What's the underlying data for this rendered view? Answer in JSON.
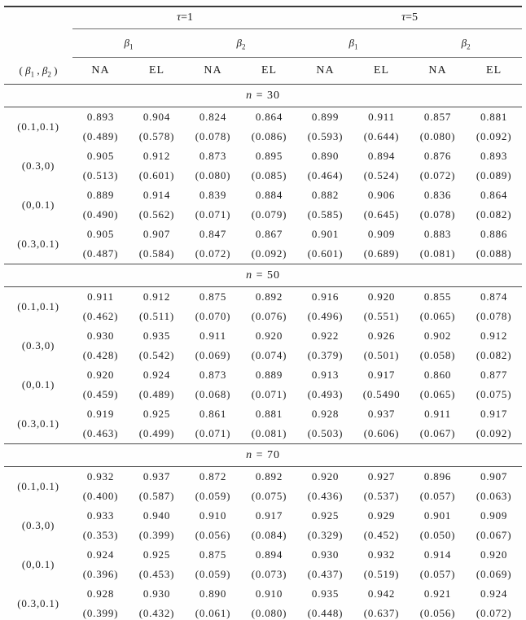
{
  "header": {
    "stub_label": "( β₁ , β₂ )",
    "tau_groups": [
      {
        "label": "τ=1"
      },
      {
        "label": "τ=5"
      }
    ],
    "beta_groups": [
      {
        "label": "β₁"
      },
      {
        "label": "β₂"
      },
      {
        "label": "β₁"
      },
      {
        "label": "β₂"
      }
    ],
    "method_cols": [
      "NA",
      "EL",
      "NA",
      "EL",
      "NA",
      "EL",
      "NA",
      "EL"
    ]
  },
  "sections": [
    {
      "title": "n = 30",
      "groups": [
        {
          "label": "(0.1,0.1)",
          "values": [
            "0.893",
            "0.904",
            "0.824",
            "0.864",
            "0.899",
            "0.911",
            "0.857",
            "0.881"
          ],
          "errors": [
            "(0.489)",
            "(0.578)",
            "(0.078)",
            "(0.086)",
            "(0.593)",
            "(0.644)",
            "(0.080)",
            "(0.092)"
          ]
        },
        {
          "label": "(0.3,0)",
          "values": [
            "0.905",
            "0.912",
            "0.873",
            "0.895",
            "0.890",
            "0.894",
            "0.876",
            "0.893"
          ],
          "errors": [
            "(0.513)",
            "(0.601)",
            "(0.080)",
            "(0.085)",
            "(0.464)",
            "(0.524)",
            "(0.072)",
            "(0.089)"
          ]
        },
        {
          "label": "(0,0.1)",
          "values": [
            "0.889",
            "0.914",
            "0.839",
            "0.884",
            "0.882",
            "0.906",
            "0.836",
            "0.864"
          ],
          "errors": [
            "(0.490)",
            "(0.562)",
            "(0.071)",
            "(0.079)",
            "(0.585)",
            "(0.645)",
            "(0.078)",
            "(0.082)"
          ]
        },
        {
          "label": "(0.3,0.1)",
          "values": [
            "0.905",
            "0.907",
            "0.847",
            "0.867",
            "0.901",
            "0.909",
            "0.883",
            "0.886"
          ],
          "errors": [
            "(0.487)",
            "(0.584)",
            "(0.072)",
            "(0.092)",
            "(0.601)",
            "(0.689)",
            "(0.081)",
            "(0.088)"
          ]
        }
      ]
    },
    {
      "title": "n = 50",
      "groups": [
        {
          "label": "(0.1,0.1)",
          "values": [
            "0.911",
            "0.912",
            "0.875",
            "0.892",
            "0.916",
            "0.920",
            "0.855",
            "0.874"
          ],
          "errors": [
            "(0.462)",
            "(0.511)",
            "(0.070)",
            "(0.076)",
            "(0.496)",
            "(0.551)",
            "(0.065)",
            "(0.078)"
          ]
        },
        {
          "label": "(0.3,0)",
          "values": [
            "0.930",
            "0.935",
            "0.911",
            "0.920",
            "0.922",
            "0.926",
            "0.902",
            "0.912"
          ],
          "errors": [
            "(0.428)",
            "(0.542)",
            "(0.069)",
            "(0.074)",
            "(0.379)",
            "(0.501)",
            "(0.058)",
            "(0.082)"
          ]
        },
        {
          "label": "(0,0.1)",
          "values": [
            "0.920",
            "0.924",
            "0.873",
            "0.889",
            "0.913",
            "0.917",
            "0.860",
            "0.877"
          ],
          "errors": [
            "(0.459)",
            "(0.489)",
            "(0.068)",
            "(0.071)",
            "(0.493)",
            "(0.5490",
            "(0.065)",
            "(0.075)"
          ]
        },
        {
          "label": "(0.3,0.1)",
          "values": [
            "0.919",
            "0.925",
            "0.861",
            "0.881",
            "0.928",
            "0.937",
            "0.911",
            "0.917"
          ],
          "errors": [
            "(0.463)",
            "(0.499)",
            "(0.071)",
            "(0.081)",
            "(0.503)",
            "(0.606)",
            "(0.067)",
            "(0.092)"
          ]
        }
      ]
    },
    {
      "title": "n = 70",
      "groups": [
        {
          "label": "(0.1,0.1)",
          "values": [
            "0.932",
            "0.937",
            "0.872",
            "0.892",
            "0.920",
            "0.927",
            "0.896",
            "0.907"
          ],
          "errors": [
            "(0.400)",
            "(0.587)",
            "(0.059)",
            "(0.075)",
            "(0.436)",
            "(0.537)",
            "(0.057)",
            "(0.063)"
          ]
        },
        {
          "label": "(0.3,0)",
          "values": [
            "0.933",
            "0.940",
            "0.910",
            "0.917",
            "0.925",
            "0.929",
            "0.901",
            "0.909"
          ],
          "errors": [
            "(0.353)",
            "(0.399)",
            "(0.056)",
            "(0.084)",
            "(0.329)",
            "(0.452)",
            "(0.050)",
            "(0.067)"
          ]
        },
        {
          "label": "(0,0.1)",
          "values": [
            "0.924",
            "0.925",
            "0.875",
            "0.894",
            "0.930",
            "0.932",
            "0.914",
            "0.920"
          ],
          "errors": [
            "(0.396)",
            "(0.453)",
            "(0.059)",
            "(0.073)",
            "(0.437)",
            "(0.519)",
            "(0.057)",
            "(0.069)"
          ]
        },
        {
          "label": "(0.3,0.1)",
          "values": [
            "0.928",
            "0.930",
            "0.890",
            "0.910",
            "0.935",
            "0.942",
            "0.921",
            "0.924"
          ],
          "errors": [
            "(0.399)",
            "(0.432)",
            "(0.061)",
            "(0.080)",
            "(0.448)",
            "(0.637)",
            "(0.056)",
            "(0.072)"
          ]
        }
      ]
    }
  ],
  "colors": {
    "text": "#1c1c1c",
    "rule_heavy": "#3a3a3a",
    "rule_light": "#6e6e6e",
    "background": "#fefefe"
  }
}
